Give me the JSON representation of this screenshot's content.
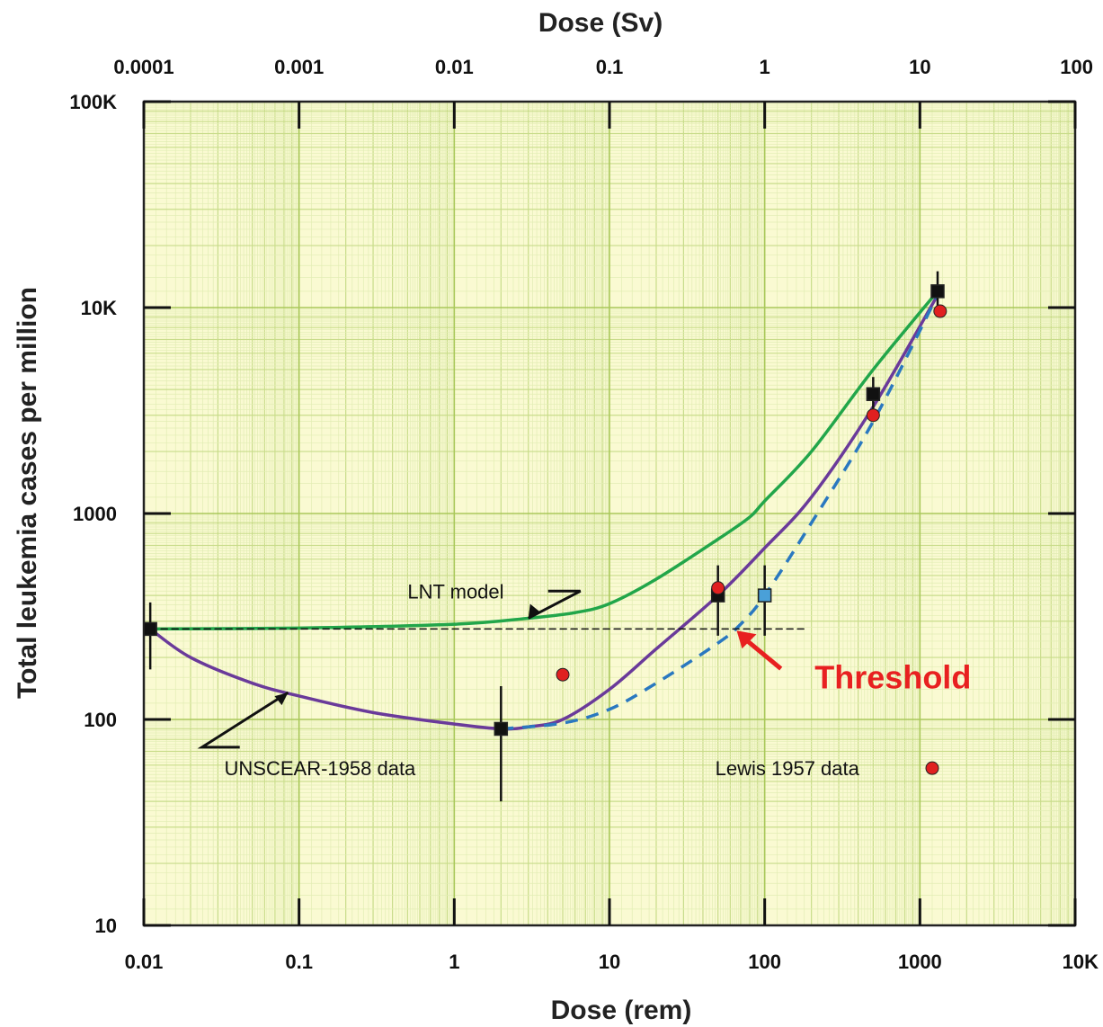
{
  "chart_data": {
    "type": "scatter",
    "title": "",
    "xlabel": "Dose (rem)",
    "x2label": "Dose (Sv)",
    "ylabel": "Total leukemia cases per million",
    "x_scale": "log",
    "y_scale": "log",
    "xlim": [
      0.01,
      10000
    ],
    "ylim": [
      10,
      100000
    ],
    "x2lim": [
      0.0001,
      100
    ],
    "grid": true,
    "x_ticks": [
      0.01,
      0.1,
      1,
      10,
      100,
      1000,
      10000
    ],
    "x_tick_labels": [
      "0.01",
      "0.1",
      "1",
      "10",
      "100",
      "1000",
      "10K"
    ],
    "x2_ticks": [
      0.0001,
      0.001,
      0.01,
      0.1,
      1,
      10,
      100
    ],
    "x2_tick_labels": [
      "0.0001",
      "0.001",
      "0.01",
      "0.1",
      "1",
      "10",
      "100"
    ],
    "y_ticks": [
      10,
      100,
      1000,
      10000,
      100000
    ],
    "y_tick_labels": [
      "10",
      "100",
      "1000",
      "10K",
      "100K"
    ],
    "series": [
      {
        "name": "UNSCEAR-1958 data",
        "kind": "points",
        "marker": "square",
        "color": "#111111",
        "points": [
          {
            "x": 0.011,
            "y": 275,
            "ylow": 175,
            "yhigh": 370
          },
          {
            "x": 2,
            "y": 90,
            "ylow": 40,
            "yhigh": 145
          },
          {
            "x": 50,
            "y": 400,
            "ylow": 255,
            "yhigh": 560
          },
          {
            "x": 500,
            "y": 3800,
            "ylow": 3000,
            "yhigh": 4600
          },
          {
            "x": 1300,
            "y": 12000,
            "ylow": 9500,
            "yhigh": 15000
          }
        ]
      },
      {
        "name": "",
        "kind": "points",
        "marker": "square",
        "color": "#4aa0d8",
        "points": [
          {
            "x": 100,
            "y": 400,
            "ylow": 255,
            "yhigh": 560
          }
        ]
      },
      {
        "name": "Lewis 1957 data",
        "kind": "points",
        "marker": "circle",
        "color": "#e02020",
        "points": [
          {
            "x": 5,
            "y": 165
          },
          {
            "x": 50,
            "y": 435
          },
          {
            "x": 500,
            "y": 3000
          },
          {
            "x": 1350,
            "y": 9600
          }
        ]
      },
      {
        "name": "LNT model",
        "kind": "line",
        "color": "#22a64a",
        "dash": "solid",
        "points": [
          {
            "x": 0.011,
            "y": 275
          },
          {
            "x": 0.1,
            "y": 278
          },
          {
            "x": 1,
            "y": 290
          },
          {
            "x": 3,
            "y": 310
          },
          {
            "x": 6,
            "y": 330
          },
          {
            "x": 10,
            "y": 365
          },
          {
            "x": 20,
            "y": 480
          },
          {
            "x": 50,
            "y": 750
          },
          {
            "x": 80,
            "y": 960
          },
          {
            "x": 100,
            "y": 1150
          },
          {
            "x": 200,
            "y": 2000
          },
          {
            "x": 500,
            "y": 5000
          },
          {
            "x": 1300,
            "y": 12000
          }
        ]
      },
      {
        "name": "",
        "kind": "line",
        "color": "#6a3a9a",
        "dash": "solid",
        "points": [
          {
            "x": 0.011,
            "y": 275
          },
          {
            "x": 0.02,
            "y": 200
          },
          {
            "x": 0.05,
            "y": 150
          },
          {
            "x": 0.1,
            "y": 130
          },
          {
            "x": 0.3,
            "y": 108
          },
          {
            "x": 1,
            "y": 95
          },
          {
            "x": 2,
            "y": 90
          },
          {
            "x": 3,
            "y": 92
          },
          {
            "x": 5,
            "y": 100
          },
          {
            "x": 10,
            "y": 140
          },
          {
            "x": 20,
            "y": 220
          },
          {
            "x": 50,
            "y": 400
          },
          {
            "x": 100,
            "y": 680
          },
          {
            "x": 200,
            "y": 1200
          },
          {
            "x": 500,
            "y": 3300
          },
          {
            "x": 1300,
            "y": 11500
          }
        ]
      },
      {
        "name": "",
        "kind": "line",
        "color": "#2a78c0",
        "dash": "dashed",
        "points": [
          {
            "x": 2,
            "y": 90
          },
          {
            "x": 5,
            "y": 96
          },
          {
            "x": 10,
            "y": 112
          },
          {
            "x": 20,
            "y": 150
          },
          {
            "x": 50,
            "y": 235
          },
          {
            "x": 70,
            "y": 290
          },
          {
            "x": 100,
            "y": 400
          },
          {
            "x": 200,
            "y": 900
          },
          {
            "x": 500,
            "y": 2800
          },
          {
            "x": 1300,
            "y": 11500
          }
        ]
      },
      {
        "name": "",
        "kind": "line",
        "color": "#111111",
        "dash": "dotted-thin",
        "points": [
          {
            "x": 0.011,
            "y": 275
          },
          {
            "x": 190,
            "y": 275
          }
        ]
      }
    ],
    "annotations": {
      "lnt": {
        "text": "LNT model",
        "x": 0.5,
        "y": 420,
        "arrow_from": {
          "x": 6.5,
          "y": 420
        },
        "arrow_to": {
          "x": 3,
          "y": 310
        }
      },
      "unscear": {
        "text": "UNSCEAR-1958 data",
        "x": 0.033,
        "y": 58,
        "arrow_from": {
          "x": 0.025,
          "y": 65
        },
        "arrow_to": {
          "x": 0.085,
          "y": 135
        }
      },
      "lewis": {
        "text": "Lewis 1957 data",
        "x": 48,
        "y": 58,
        "marker_x": 1200,
        "marker_y": 58
      },
      "threshold": {
        "text": "Threshold",
        "color": "#e82020",
        "x": 210,
        "y": 163,
        "arrow_from": {
          "x": 100,
          "y": 195
        },
        "arrow_to": {
          "x": 66,
          "y": 270
        }
      }
    }
  }
}
